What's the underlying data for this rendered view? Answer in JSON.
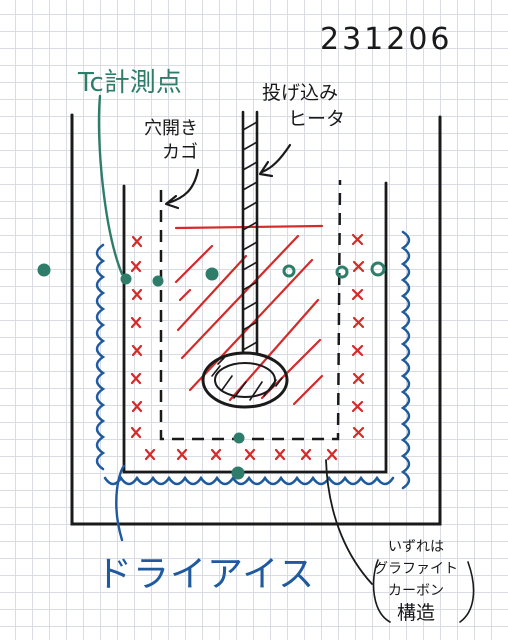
{
  "title_date": "231206",
  "labels": {
    "thermocouple": "Tc計測点",
    "heater": [
      "投げ込み",
      "ヒータ"
    ],
    "cage": [
      "穴開き",
      "カゴ"
    ],
    "dry_ice": "ドライアイス",
    "material_note": [
      "いずれは",
      "グラファイト",
      "カーボン",
      "構造"
    ]
  },
  "colors": {
    "ink": "#1a1a1a",
    "thermocouple": "#2e7d6a",
    "dry_ice": "#1f5a9e",
    "sample": "#d42a2a"
  }
}
